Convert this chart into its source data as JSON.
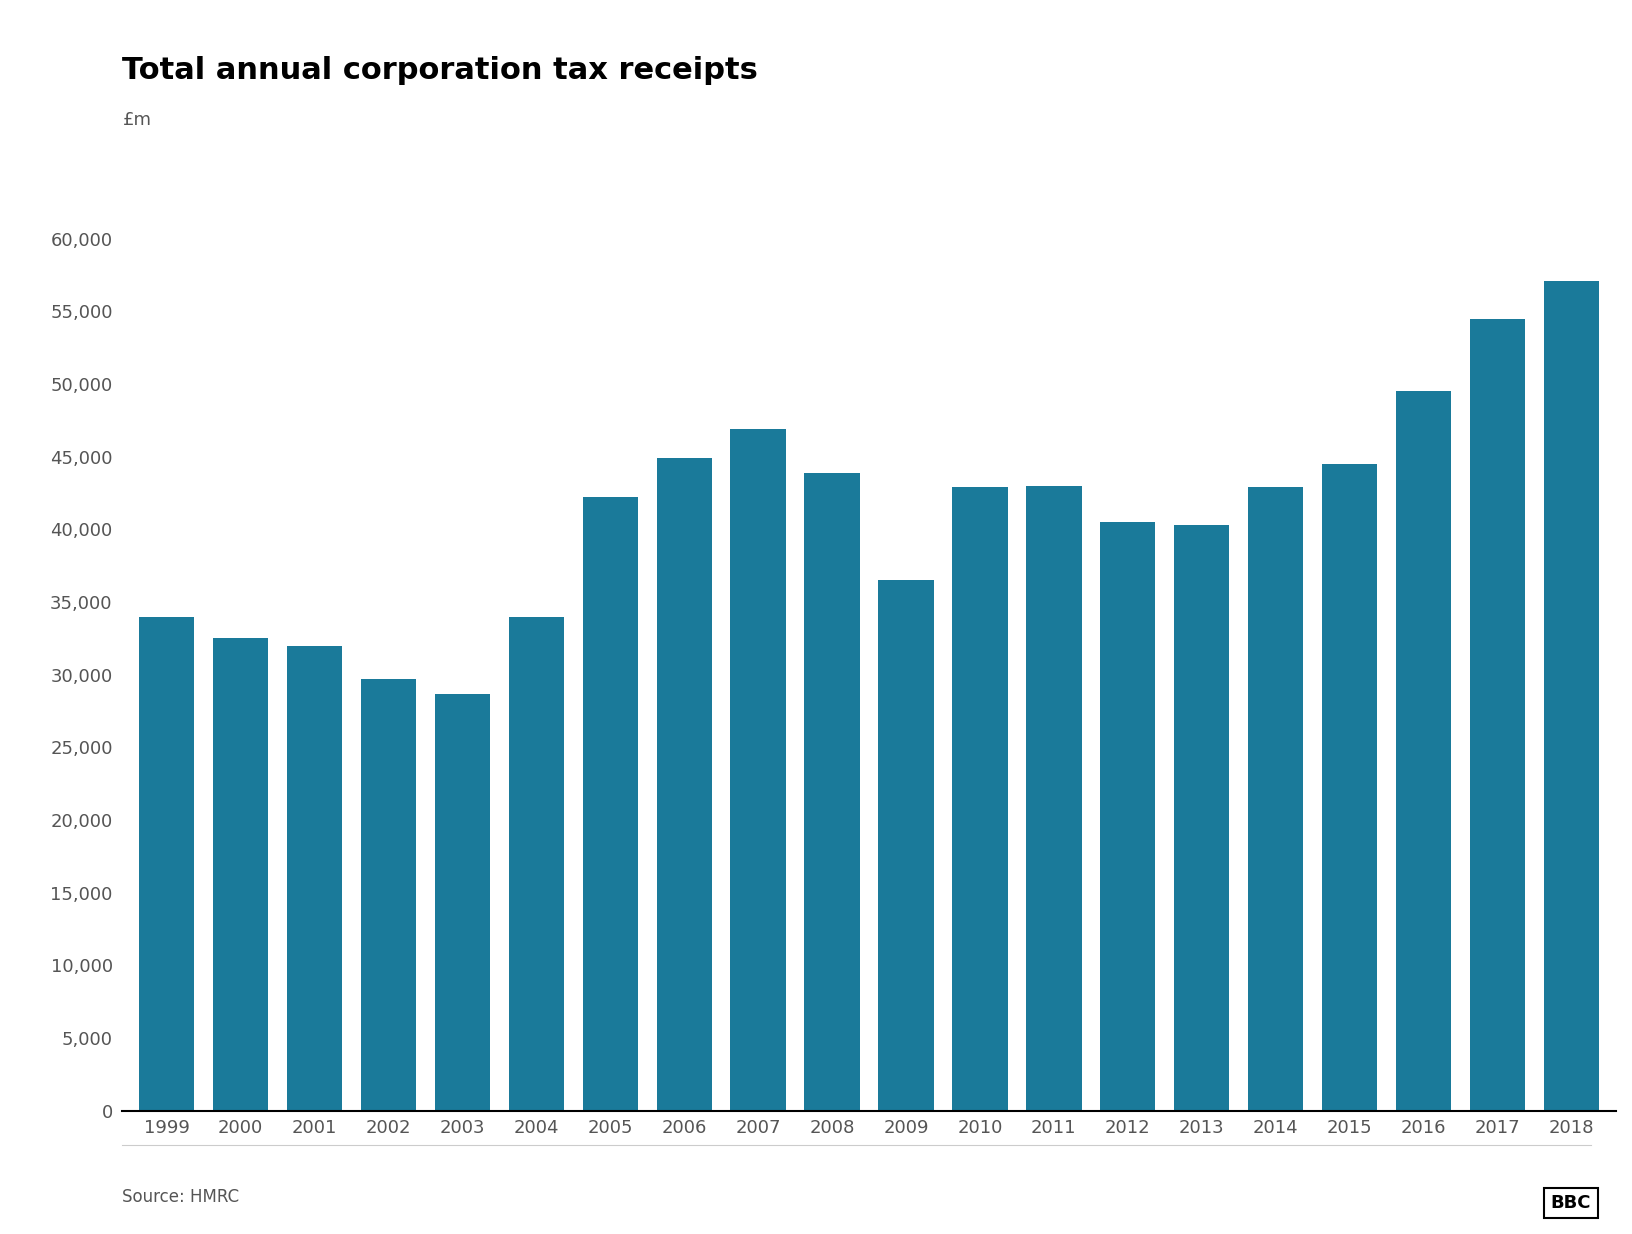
{
  "title": "Total annual corporation tax receipts",
  "ylabel": "£m",
  "source": "Source: HMRC",
  "bar_color": "#1a7a9a",
  "background_color": "#ffffff",
  "years": [
    1999,
    2000,
    2001,
    2002,
    2003,
    2004,
    2005,
    2006,
    2007,
    2008,
    2009,
    2010,
    2011,
    2012,
    2013,
    2014,
    2015,
    2016,
    2017,
    2018
  ],
  "values": [
    34000,
    32500,
    32000,
    29700,
    28700,
    34000,
    42200,
    44900,
    46900,
    43900,
    36500,
    42900,
    43000,
    40500,
    40300,
    42900,
    44500,
    49500,
    54500,
    57100
  ],
  "ylim": [
    0,
    62000
  ],
  "yticks": [
    0,
    5000,
    10000,
    15000,
    20000,
    25000,
    30000,
    35000,
    40000,
    45000,
    50000,
    55000,
    60000
  ],
  "title_fontsize": 22,
  "ylabel_fontsize": 13,
  "tick_fontsize": 13,
  "source_fontsize": 12,
  "axis_line_color": "#000000",
  "tick_color": "#555555",
  "title_color": "#000000"
}
